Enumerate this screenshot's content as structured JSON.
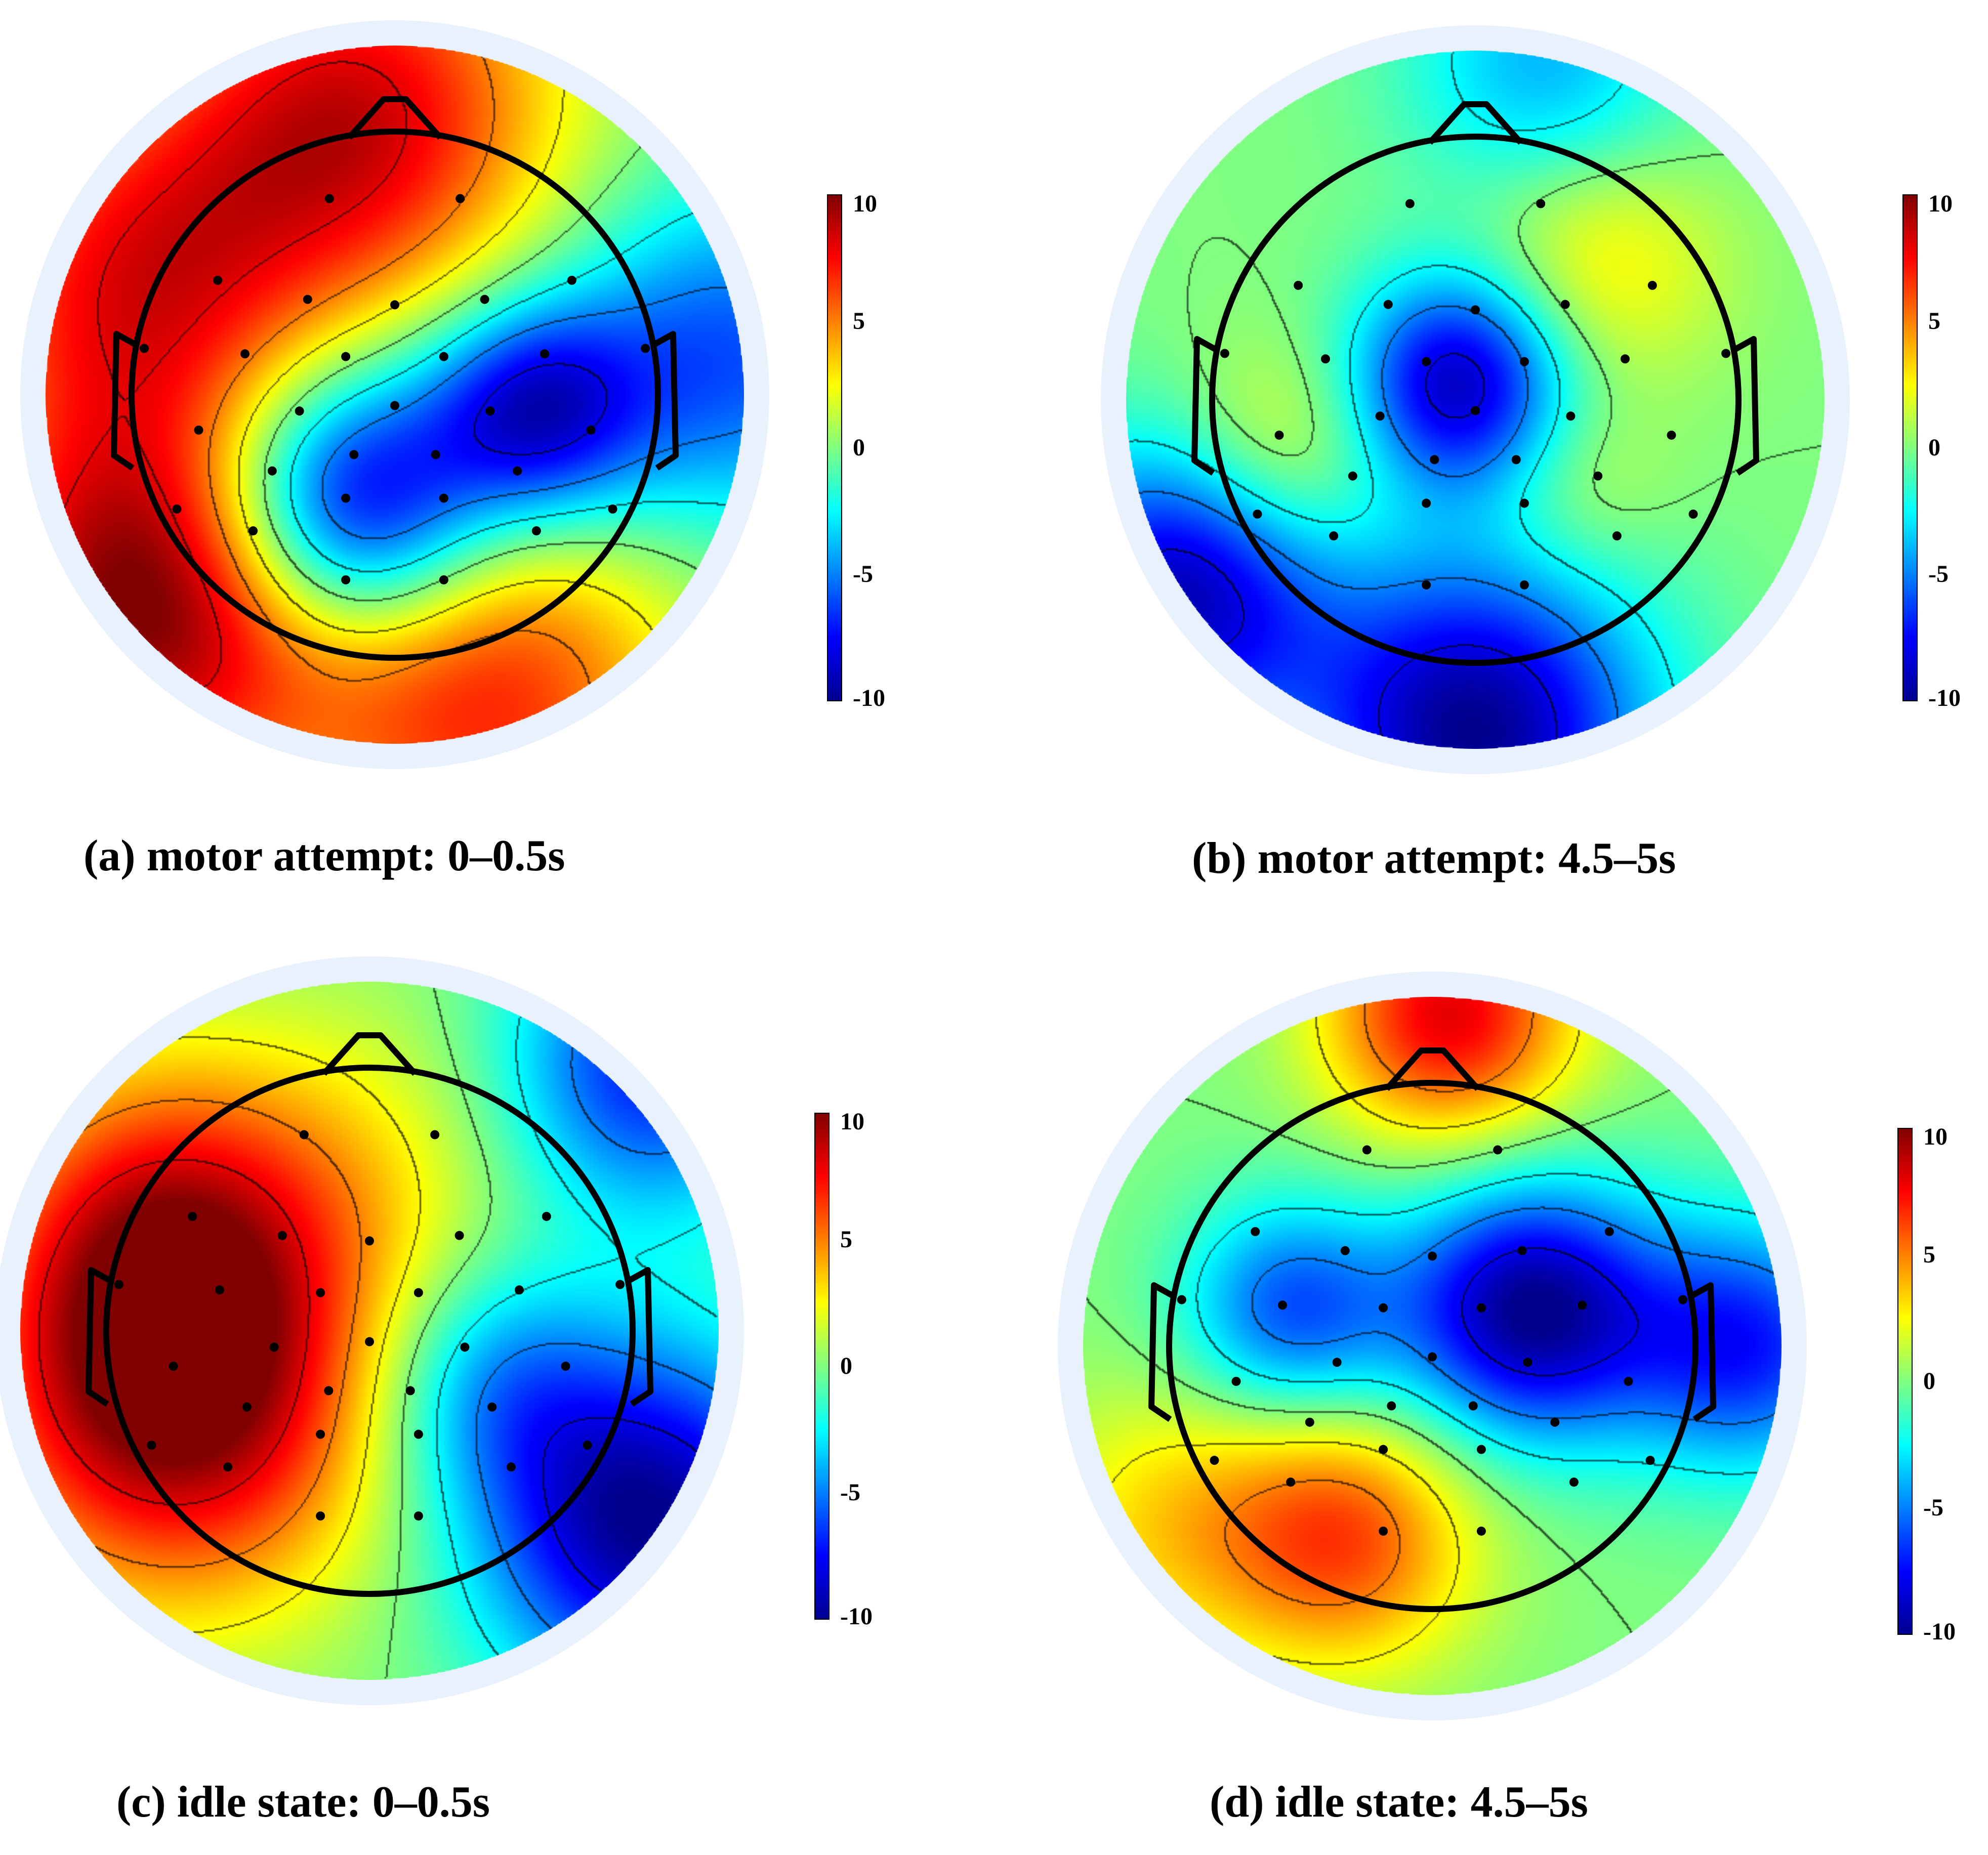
{
  "figure": {
    "panels": [
      {
        "id": "a",
        "caption": "(a) motor attempt: 0–0.5s"
      },
      {
        "id": "b",
        "caption": "(b) motor attempt: 4.5–5s"
      },
      {
        "id": "c",
        "caption": "(c) idle state: 0–0.5s"
      },
      {
        "id": "d",
        "caption": "(d) idle state: 4.5–5s"
      }
    ],
    "colorbar": {
      "colormap": "jet",
      "range": [
        -10,
        10
      ],
      "ticks": [
        "10",
        "5",
        "0",
        "-5",
        "-10"
      ],
      "colors": [
        "#00008f",
        "#0000ff",
        "#0080ff",
        "#00ffff",
        "#80ff80",
        "#ffff00",
        "#ff8000",
        "#ff0000",
        "#800000"
      ]
    }
  },
  "chart_data": [
    {
      "type": "heatmap",
      "subtype": "eeg-topographic-map",
      "title": "(a) motor attempt: 0–0.5s",
      "color_range": [
        -10,
        10
      ],
      "colorbar_ticks": [
        10,
        5,
        0,
        -5,
        -10
      ],
      "blobs": [
        {
          "x": -0.12,
          "y": -0.32,
          "value": -11,
          "spread": 0.28
        },
        {
          "x": 0.4,
          "y": -0.05,
          "value": -8,
          "spread": 0.22
        },
        {
          "x": 0.95,
          "y": 0.1,
          "value": -6,
          "spread": 0.35
        },
        {
          "x": -0.1,
          "y": 0.8,
          "value": 8,
          "spread": 0.4
        },
        {
          "x": -0.75,
          "y": 0.3,
          "value": 7,
          "spread": 0.4
        },
        {
          "x": -0.7,
          "y": -0.6,
          "value": 10,
          "spread": 0.38
        },
        {
          "x": 0.25,
          "y": -0.85,
          "value": 7,
          "spread": 0.4
        }
      ]
    },
    {
      "type": "heatmap",
      "subtype": "eeg-topographic-map",
      "title": "(b) motor attempt: 4.5–5s",
      "color_range": [
        -10,
        10
      ],
      "colorbar_ticks": [
        10,
        5,
        0,
        -5,
        -10
      ],
      "blobs": [
        {
          "x": -0.05,
          "y": 0.05,
          "value": -9,
          "spread": 0.22
        },
        {
          "x": 0.0,
          "y": -0.95,
          "value": -10,
          "spread": 0.35
        },
        {
          "x": -0.85,
          "y": -0.55,
          "value": -9,
          "spread": 0.3
        },
        {
          "x": 0.35,
          "y": 0.4,
          "value": 3,
          "spread": 0.25
        },
        {
          "x": -0.55,
          "y": -0.15,
          "value": 3,
          "spread": 0.22
        },
        {
          "x": 0.3,
          "y": -0.25,
          "value": 1.5,
          "spread": 0.18
        },
        {
          "x": 0.2,
          "y": 0.95,
          "value": -4,
          "spread": 0.28
        }
      ]
    },
    {
      "type": "heatmap",
      "subtype": "eeg-topographic-map",
      "title": "(c) idle state: 0–0.5s",
      "color_range": [
        -10,
        10
      ],
      "colorbar_ticks": [
        10,
        5,
        0,
        -5,
        -10
      ],
      "blobs": [
        {
          "x": -0.55,
          "y": -0.2,
          "value": 10,
          "spread": 0.4
        },
        {
          "x": -0.6,
          "y": 0.3,
          "value": 6,
          "spread": 0.35
        },
        {
          "x": 0.8,
          "y": -0.55,
          "value": -10,
          "spread": 0.35
        },
        {
          "x": 0.35,
          "y": -0.15,
          "value": -4,
          "spread": 0.25
        },
        {
          "x": 0.8,
          "y": 0.75,
          "value": -7,
          "spread": 0.3
        },
        {
          "x": 0.0,
          "y": 0.45,
          "value": 2,
          "spread": 0.35
        }
      ]
    },
    {
      "type": "heatmap",
      "subtype": "eeg-topographic-map",
      "title": "(d) idle state: 4.5–5s",
      "color_range": [
        -10,
        10
      ],
      "colorbar_ticks": [
        10,
        5,
        0,
        -5,
        -10
      ],
      "blobs": [
        {
          "x": 0.28,
          "y": 0.1,
          "value": -10,
          "spread": 0.26
        },
        {
          "x": -0.4,
          "y": 0.1,
          "value": -6,
          "spread": 0.22
        },
        {
          "x": 0.9,
          "y": 0.0,
          "value": -7,
          "spread": 0.25
        },
        {
          "x": -0.25,
          "y": -0.55,
          "value": 6,
          "spread": 0.26
        },
        {
          "x": 0.05,
          "y": 0.95,
          "value": 8,
          "spread": 0.25
        },
        {
          "x": -0.75,
          "y": -0.5,
          "value": 3,
          "spread": 0.28
        }
      ]
    }
  ]
}
